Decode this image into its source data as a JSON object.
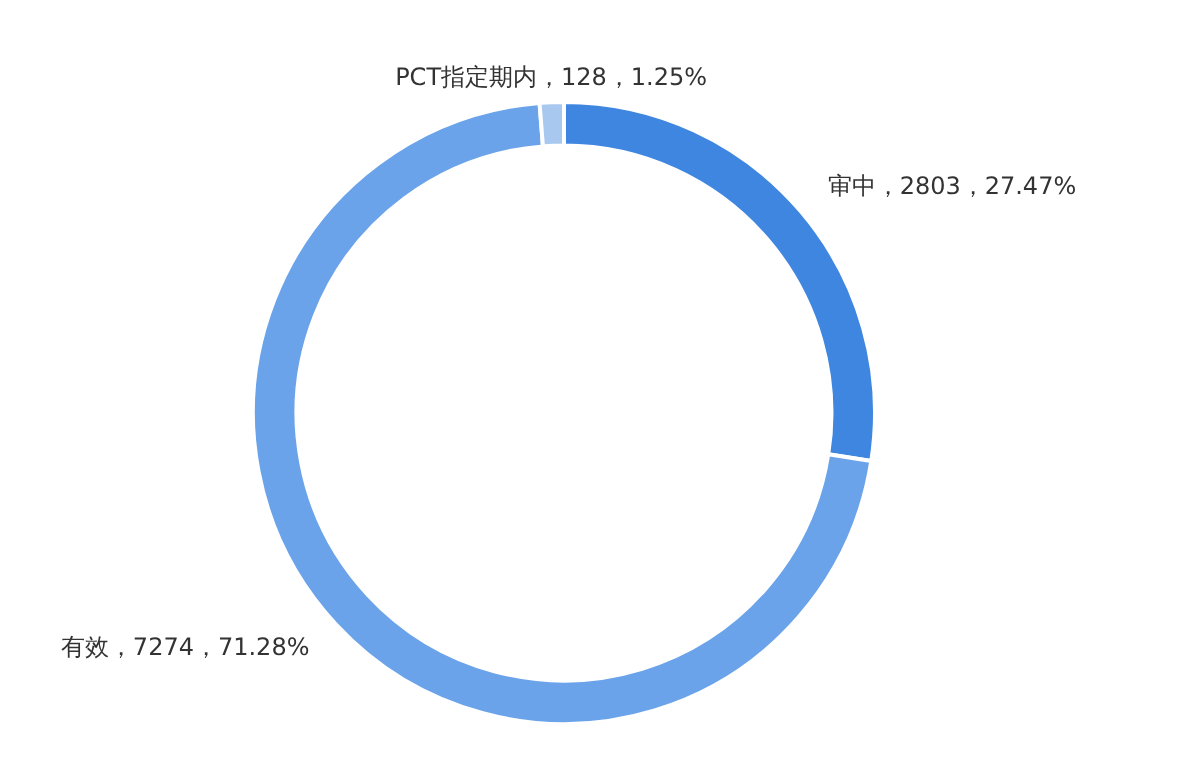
{
  "chart_data": {
    "type": "donut",
    "categories": [
      "审中",
      "有效",
      "PCT指定期内"
    ],
    "values": [
      2803,
      7274,
      128
    ],
    "value_labels": [
      "，2803，27.47%",
      "，7274，71.28%",
      "，128，1.25%"
    ],
    "colors": [
      "#3f86e0",
      "#6aa3ea",
      "#a8c8f0"
    ],
    "data_labels": true,
    "legend": false
  }
}
